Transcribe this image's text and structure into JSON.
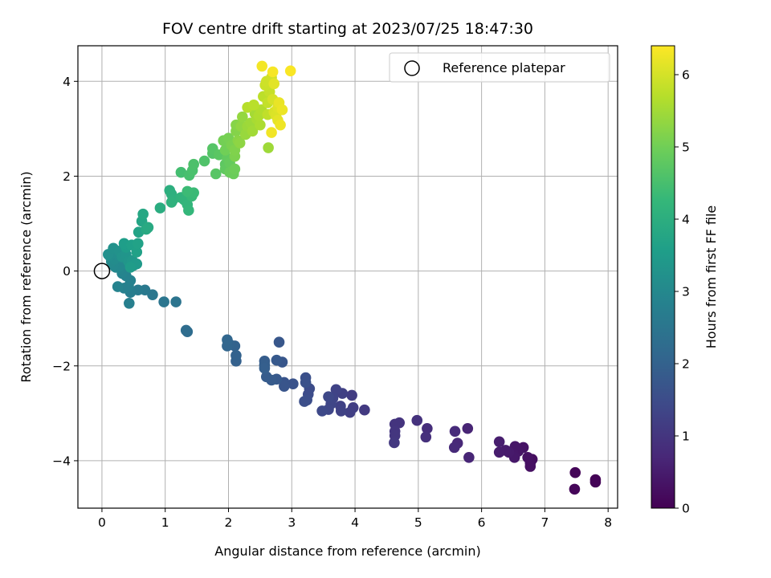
{
  "chart_data": {
    "type": "scatter",
    "title": "FOV centre drift starting at 2023/07/25 18:47:30",
    "xlabel": "Angular distance from reference (arcmin)",
    "ylabel": "Rotation from reference (arcmin)",
    "xlim": [
      -0.38,
      8.15
    ],
    "ylim": [
      -5.0,
      4.75
    ],
    "xticks": [
      0,
      1,
      2,
      3,
      4,
      5,
      6,
      7,
      8
    ],
    "yticks": [
      -4,
      -2,
      0,
      2,
      4
    ],
    "grid": true,
    "legend": {
      "placement": "top-right",
      "entries": [
        "Reference platepar"
      ]
    },
    "reference_point": {
      "x": 0,
      "y": 0,
      "label": "Reference platepar"
    },
    "colorbar": {
      "label": "Hours from first FF file",
      "range": [
        0,
        6.4
      ],
      "ticks": [
        0,
        1,
        2,
        3,
        4,
        5,
        6
      ],
      "colormap": "viridis"
    },
    "colormap_stops": [
      "#440154",
      "#482878",
      "#3e4989",
      "#31688e",
      "#26828e",
      "#1f9e89",
      "#35b779",
      "#6ece58",
      "#b5de2b",
      "#fde725"
    ],
    "points": [
      {
        "x": 7.8,
        "y": -4.4,
        "c": 0.02
      },
      {
        "x": 7.8,
        "y": -4.45,
        "c": 0.05
      },
      {
        "x": 7.48,
        "y": -4.25,
        "c": 0.08
      },
      {
        "x": 7.47,
        "y": -4.6,
        "c": 0.1
      },
      {
        "x": 6.8,
        "y": -3.97,
        "c": 0.22
      },
      {
        "x": 6.77,
        "y": -4.05,
        "c": 0.25
      },
      {
        "x": 6.77,
        "y": -4.12,
        "c": 0.28
      },
      {
        "x": 6.73,
        "y": -3.93,
        "c": 0.3
      },
      {
        "x": 6.66,
        "y": -3.72,
        "c": 0.33
      },
      {
        "x": 6.58,
        "y": -3.8,
        "c": 0.36
      },
      {
        "x": 6.53,
        "y": -3.7,
        "c": 0.38
      },
      {
        "x": 6.5,
        "y": -3.85,
        "c": 0.4
      },
      {
        "x": 6.52,
        "y": -3.93,
        "c": 0.42
      },
      {
        "x": 6.43,
        "y": -3.82,
        "c": 0.45
      },
      {
        "x": 6.38,
        "y": -3.78,
        "c": 0.47
      },
      {
        "x": 6.28,
        "y": -3.82,
        "c": 0.5
      },
      {
        "x": 6.28,
        "y": -3.6,
        "c": 0.52
      },
      {
        "x": 5.78,
        "y": -3.32,
        "c": 0.65
      },
      {
        "x": 5.8,
        "y": -3.93,
        "c": 0.68
      },
      {
        "x": 5.62,
        "y": -3.63,
        "c": 0.72
      },
      {
        "x": 5.57,
        "y": -3.72,
        "c": 0.75
      },
      {
        "x": 5.58,
        "y": -3.38,
        "c": 0.78
      },
      {
        "x": 5.14,
        "y": -3.32,
        "c": 0.85
      },
      {
        "x": 5.12,
        "y": -3.5,
        "c": 0.88
      },
      {
        "x": 4.98,
        "y": -3.15,
        "c": 0.92
      },
      {
        "x": 4.7,
        "y": -3.2,
        "c": 0.96
      },
      {
        "x": 4.63,
        "y": -3.23,
        "c": 0.98
      },
      {
        "x": 4.63,
        "y": -3.38,
        "c": 1.0
      },
      {
        "x": 4.63,
        "y": -3.47,
        "c": 1.02
      },
      {
        "x": 4.62,
        "y": -3.62,
        "c": 1.05
      },
      {
        "x": 4.15,
        "y": -2.93,
        "c": 1.1
      },
      {
        "x": 3.95,
        "y": -2.62,
        "c": 1.15
      },
      {
        "x": 3.97,
        "y": -2.88,
        "c": 1.18
      },
      {
        "x": 3.92,
        "y": -2.98,
        "c": 1.2
      },
      {
        "x": 3.8,
        "y": -2.58,
        "c": 1.22
      },
      {
        "x": 3.77,
        "y": -2.85,
        "c": 1.25
      },
      {
        "x": 3.78,
        "y": -2.95,
        "c": 1.27
      },
      {
        "x": 3.7,
        "y": -2.5,
        "c": 1.3
      },
      {
        "x": 3.65,
        "y": -2.68,
        "c": 1.32
      },
      {
        "x": 3.62,
        "y": -2.8,
        "c": 1.35
      },
      {
        "x": 3.58,
        "y": -2.92,
        "c": 1.38
      },
      {
        "x": 3.58,
        "y": -2.65,
        "c": 1.4
      },
      {
        "x": 3.48,
        "y": -2.95,
        "c": 1.43
      },
      {
        "x": 3.28,
        "y": -2.48,
        "c": 1.48
      },
      {
        "x": 3.26,
        "y": -2.6,
        "c": 1.5
      },
      {
        "x": 3.24,
        "y": -2.72,
        "c": 1.53
      },
      {
        "x": 3.2,
        "y": -2.75,
        "c": 1.55
      },
      {
        "x": 3.22,
        "y": -2.25,
        "c": 1.58
      },
      {
        "x": 3.22,
        "y": -2.35,
        "c": 1.6
      },
      {
        "x": 3.02,
        "y": -2.38,
        "c": 1.65
      },
      {
        "x": 2.88,
        "y": -2.35,
        "c": 1.68
      },
      {
        "x": 2.88,
        "y": -2.43,
        "c": 1.7
      },
      {
        "x": 2.85,
        "y": -1.92,
        "c": 1.73
      },
      {
        "x": 2.8,
        "y": -1.5,
        "c": 1.75
      },
      {
        "x": 2.76,
        "y": -1.88,
        "c": 1.78
      },
      {
        "x": 2.76,
        "y": -2.28,
        "c": 1.8
      },
      {
        "x": 2.68,
        "y": -2.3,
        "c": 1.83
      },
      {
        "x": 2.6,
        "y": -2.23,
        "c": 1.85
      },
      {
        "x": 2.57,
        "y": -1.9,
        "c": 1.88
      },
      {
        "x": 2.57,
        "y": -1.98,
        "c": 1.9
      },
      {
        "x": 2.57,
        "y": -2.05,
        "c": 1.92
      },
      {
        "x": 2.12,
        "y": -1.9,
        "c": 1.98
      },
      {
        "x": 2.12,
        "y": -1.78,
        "c": 2.0
      },
      {
        "x": 2.1,
        "y": -1.58,
        "c": 2.02
      },
      {
        "x": 2.02,
        "y": -1.55,
        "c": 2.05
      },
      {
        "x": 1.98,
        "y": -1.58,
        "c": 2.08
      },
      {
        "x": 1.98,
        "y": -1.45,
        "c": 2.1
      },
      {
        "x": 1.35,
        "y": -1.28,
        "c": 2.25
      },
      {
        "x": 1.33,
        "y": -1.25,
        "c": 2.28
      },
      {
        "x": 1.17,
        "y": -0.65,
        "c": 2.45
      },
      {
        "x": 0.98,
        "y": -0.65,
        "c": 2.5
      },
      {
        "x": 0.8,
        "y": -0.5,
        "c": 2.55
      },
      {
        "x": 0.68,
        "y": -0.4,
        "c": 2.6
      },
      {
        "x": 0.57,
        "y": -0.4,
        "c": 2.65
      },
      {
        "x": 0.45,
        "y": -0.45,
        "c": 2.7
      },
      {
        "x": 0.43,
        "y": -0.68,
        "c": 2.75
      },
      {
        "x": 0.35,
        "y": -0.36,
        "c": 2.78
      },
      {
        "x": 0.42,
        "y": -0.32,
        "c": 2.8
      },
      {
        "x": 0.45,
        "y": -0.2,
        "c": 2.83
      },
      {
        "x": 0.38,
        "y": -0.1,
        "c": 2.85
      },
      {
        "x": 0.25,
        "y": -0.33,
        "c": 2.88
      },
      {
        "x": 0.32,
        "y": -0.05,
        "c": 2.9
      },
      {
        "x": 0.3,
        "y": 0.05,
        "c": 2.93
      },
      {
        "x": 0.22,
        "y": 0.08,
        "c": 2.96
      },
      {
        "x": 0.28,
        "y": 0.1,
        "c": 3.0
      },
      {
        "x": 0.18,
        "y": 0.12,
        "c": 3.03
      },
      {
        "x": 0.15,
        "y": 0.2,
        "c": 3.06
      },
      {
        "x": 0.2,
        "y": 0.25,
        "c": 3.1
      },
      {
        "x": 0.12,
        "y": 0.32,
        "c": 3.13
      },
      {
        "x": 0.25,
        "y": 0.35,
        "c": 3.16
      },
      {
        "x": 0.1,
        "y": 0.35,
        "c": 3.2
      },
      {
        "x": 0.18,
        "y": 0.48,
        "c": 3.23
      },
      {
        "x": 0.28,
        "y": 0.42,
        "c": 3.26
      },
      {
        "x": 0.32,
        "y": 0.3,
        "c": 3.3
      },
      {
        "x": 0.38,
        "y": 0.35,
        "c": 3.33
      },
      {
        "x": 0.42,
        "y": 0.2,
        "c": 3.36
      },
      {
        "x": 0.48,
        "y": 0.22,
        "c": 3.4
      },
      {
        "x": 0.5,
        "y": 0.12,
        "c": 3.43
      },
      {
        "x": 0.55,
        "y": 0.15,
        "c": 3.46
      },
      {
        "x": 0.45,
        "y": 0.08,
        "c": 3.5
      },
      {
        "x": 0.38,
        "y": 0.5,
        "c": 3.53
      },
      {
        "x": 0.35,
        "y": 0.58,
        "c": 3.56
      },
      {
        "x": 0.47,
        "y": 0.55,
        "c": 3.6
      },
      {
        "x": 0.55,
        "y": 0.4,
        "c": 3.63
      },
      {
        "x": 0.57,
        "y": 0.58,
        "c": 3.66
      },
      {
        "x": 0.58,
        "y": 0.82,
        "c": 3.7
      },
      {
        "x": 0.63,
        "y": 1.05,
        "c": 3.75
      },
      {
        "x": 0.65,
        "y": 1.2,
        "c": 3.8
      },
      {
        "x": 0.7,
        "y": 0.88,
        "c": 3.85
      },
      {
        "x": 0.73,
        "y": 0.92,
        "c": 3.88
      },
      {
        "x": 0.92,
        "y": 1.33,
        "c": 3.95
      },
      {
        "x": 1.07,
        "y": 1.7,
        "c": 4.0
      },
      {
        "x": 1.1,
        "y": 1.62,
        "c": 4.03
      },
      {
        "x": 1.12,
        "y": 1.5,
        "c": 4.06
      },
      {
        "x": 1.1,
        "y": 1.45,
        "c": 4.1
      },
      {
        "x": 1.25,
        "y": 1.55,
        "c": 4.13
      },
      {
        "x": 1.3,
        "y": 1.5,
        "c": 4.16
      },
      {
        "x": 1.35,
        "y": 1.4,
        "c": 4.2
      },
      {
        "x": 1.37,
        "y": 1.28,
        "c": 4.23
      },
      {
        "x": 1.38,
        "y": 1.65,
        "c": 4.26
      },
      {
        "x": 1.42,
        "y": 1.58,
        "c": 4.3
      },
      {
        "x": 1.45,
        "y": 1.65,
        "c": 4.33
      },
      {
        "x": 1.35,
        "y": 1.68,
        "c": 4.36
      },
      {
        "x": 1.25,
        "y": 2.08,
        "c": 4.45
      },
      {
        "x": 1.38,
        "y": 2.02,
        "c": 4.5
      },
      {
        "x": 1.43,
        "y": 2.12,
        "c": 4.53
      },
      {
        "x": 1.45,
        "y": 2.25,
        "c": 4.56
      },
      {
        "x": 1.62,
        "y": 2.32,
        "c": 4.6
      },
      {
        "x": 1.75,
        "y": 2.48,
        "c": 4.65
      },
      {
        "x": 1.75,
        "y": 2.58,
        "c": 4.68
      },
      {
        "x": 1.8,
        "y": 2.05,
        "c": 4.7
      },
      {
        "x": 1.85,
        "y": 2.45,
        "c": 4.73
      },
      {
        "x": 1.95,
        "y": 2.25,
        "c": 4.76
      },
      {
        "x": 1.95,
        "y": 2.15,
        "c": 4.8
      },
      {
        "x": 1.98,
        "y": 2.38,
        "c": 4.83
      },
      {
        "x": 2.02,
        "y": 2.28,
        "c": 4.86
      },
      {
        "x": 2.02,
        "y": 2.08,
        "c": 4.9
      },
      {
        "x": 2.08,
        "y": 2.05,
        "c": 4.93
      },
      {
        "x": 2.1,
        "y": 2.15,
        "c": 4.96
      },
      {
        "x": 1.95,
        "y": 2.55,
        "c": 5.0
      },
      {
        "x": 1.92,
        "y": 2.75,
        "c": 5.03
      },
      {
        "x": 2.0,
        "y": 2.8,
        "c": 5.06
      },
      {
        "x": 2.05,
        "y": 2.65,
        "c": 5.1
      },
      {
        "x": 2.1,
        "y": 2.42,
        "c": 5.13
      },
      {
        "x": 2.1,
        "y": 2.55,
        "c": 5.16
      },
      {
        "x": 2.12,
        "y": 2.95,
        "c": 5.2
      },
      {
        "x": 2.12,
        "y": 3.08,
        "c": 5.23
      },
      {
        "x": 2.15,
        "y": 2.75,
        "c": 5.26
      },
      {
        "x": 2.18,
        "y": 2.7,
        "c": 5.3
      },
      {
        "x": 2.2,
        "y": 3.05,
        "c": 5.33
      },
      {
        "x": 2.22,
        "y": 3.25,
        "c": 5.36
      },
      {
        "x": 2.27,
        "y": 2.88,
        "c": 5.4
      },
      {
        "x": 2.3,
        "y": 3.05,
        "c": 5.43
      },
      {
        "x": 2.35,
        "y": 3.12,
        "c": 5.46
      },
      {
        "x": 2.38,
        "y": 2.95,
        "c": 5.5
      },
      {
        "x": 2.42,
        "y": 3.32,
        "c": 5.53
      },
      {
        "x": 2.45,
        "y": 3.2,
        "c": 5.56
      },
      {
        "x": 2.5,
        "y": 3.08,
        "c": 5.6
      },
      {
        "x": 2.48,
        "y": 3.28,
        "c": 5.63
      },
      {
        "x": 2.52,
        "y": 3.4,
        "c": 5.66
      },
      {
        "x": 2.3,
        "y": 3.45,
        "c": 5.7
      },
      {
        "x": 2.4,
        "y": 3.5,
        "c": 5.73
      },
      {
        "x": 2.55,
        "y": 3.68,
        "c": 5.76
      },
      {
        "x": 2.62,
        "y": 3.3,
        "c": 5.8
      },
      {
        "x": 2.62,
        "y": 3.55,
        "c": 5.83
      },
      {
        "x": 2.65,
        "y": 3.78,
        "c": 5.86
      },
      {
        "x": 2.58,
        "y": 3.92,
        "c": 5.9
      },
      {
        "x": 2.6,
        "y": 4.0,
        "c": 5.93
      },
      {
        "x": 2.68,
        "y": 4.08,
        "c": 5.96
      },
      {
        "x": 2.7,
        "y": 3.62,
        "c": 6.0
      },
      {
        "x": 2.72,
        "y": 3.35,
        "c": 6.03
      },
      {
        "x": 2.75,
        "y": 3.28,
        "c": 6.06
      },
      {
        "x": 2.78,
        "y": 3.45,
        "c": 6.1
      },
      {
        "x": 2.72,
        "y": 3.95,
        "c": 6.13
      },
      {
        "x": 2.78,
        "y": 3.18,
        "c": 6.16
      },
      {
        "x": 2.8,
        "y": 3.55,
        "c": 6.2
      },
      {
        "x": 2.85,
        "y": 3.4,
        "c": 6.23
      },
      {
        "x": 2.82,
        "y": 3.08,
        "c": 6.25
      },
      {
        "x": 2.68,
        "y": 2.92,
        "c": 6.28
      },
      {
        "x": 2.53,
        "y": 4.32,
        "c": 6.3
      },
      {
        "x": 2.7,
        "y": 4.2,
        "c": 6.33
      },
      {
        "x": 2.98,
        "y": 4.22,
        "c": 6.36
      },
      {
        "x": 2.63,
        "y": 2.6,
        "c": 5.46
      }
    ]
  }
}
